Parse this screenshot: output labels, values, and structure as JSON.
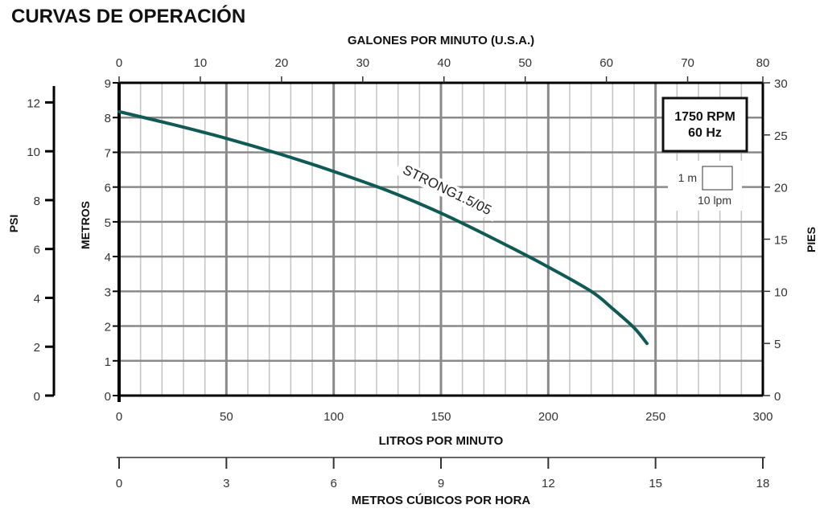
{
  "title": "CURVAS DE OPERACIÓN",
  "chart_data": {
    "type": "line",
    "title": "CURVAS DE OPERACIÓN",
    "xlabel": "LITROS POR MINUTO",
    "ylabel": "METROS",
    "xlim": [
      0,
      300
    ],
    "ylim": [
      0,
      9
    ],
    "x_ticks": [
      0,
      50,
      100,
      150,
      200,
      250,
      300
    ],
    "y_ticks": [
      0,
      1,
      2,
      3,
      4,
      5,
      6,
      7,
      8,
      9
    ],
    "grid": true,
    "top_axis": {
      "label": "GALONES POR MINUTO (U.S.A.)",
      "ticks": [
        0,
        10,
        20,
        30,
        40,
        50,
        60,
        70,
        80
      ]
    },
    "bottom_axis_2": {
      "label": "METROS CÚBICOS POR HORA",
      "ticks": [
        0,
        3,
        6,
        9,
        12,
        15,
        18
      ]
    },
    "left_axis_2": {
      "label": "PSI",
      "ticks": [
        0,
        2,
        4,
        6,
        8,
        10,
        12
      ]
    },
    "right_axis": {
      "label": "PIES",
      "ticks": [
        0,
        5,
        10,
        15,
        20,
        25,
        30
      ]
    },
    "info_box": {
      "line1": "1750 RPM",
      "line2": "60 Hz"
    },
    "scale_legend": {
      "vertical": "1 m",
      "horizontal": "10 lpm"
    },
    "series": [
      {
        "name": "STRONG1.5/05",
        "color": "#0f5a55",
        "x": [
          0,
          25,
          50,
          75,
          100,
          125,
          150,
          175,
          200,
          220,
          230,
          240,
          246
        ],
        "y": [
          8.17,
          7.8,
          7.4,
          6.95,
          6.45,
          5.9,
          5.25,
          4.5,
          3.7,
          3.0,
          2.5,
          1.95,
          1.5
        ]
      }
    ]
  }
}
